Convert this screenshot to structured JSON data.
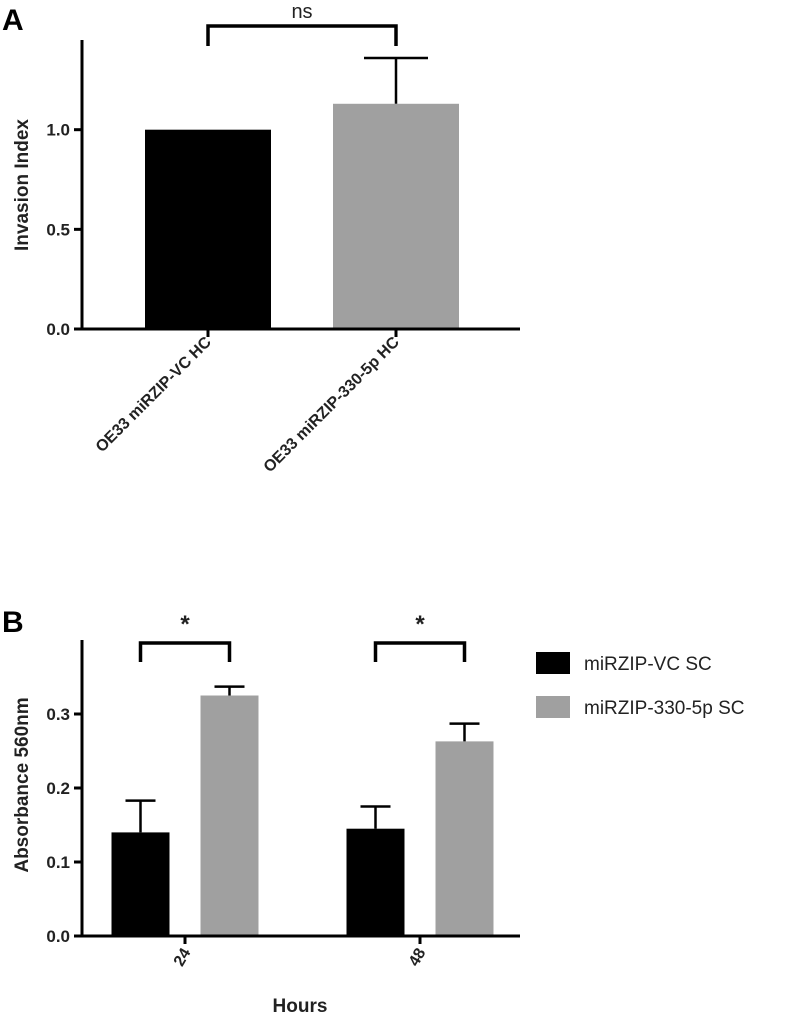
{
  "chart_data": [
    {
      "panel": "A",
      "type": "bar",
      "categories": [
        "OE33 miRZIP-VC HC",
        "OE33 miRZIP-330-5p HC"
      ],
      "values": [
        1.0,
        1.13
      ],
      "errors": [
        0,
        0.23
      ],
      "colors": [
        "#000000",
        "#a0a0a0"
      ],
      "ylabel": "Invasion Index",
      "xlabel": "",
      "ylim": [
        0,
        1.45
      ],
      "yticks": [
        {
          "value": 0.0,
          "label": "0.0"
        },
        {
          "value": 0.5,
          "label": "0.5"
        },
        {
          "value": 1.0,
          "label": "1.0"
        }
      ],
      "significance": [
        {
          "between": [
            0,
            1
          ],
          "label": "ns"
        }
      ],
      "grid": false
    },
    {
      "panel": "B",
      "type": "bar",
      "categories": [
        "24",
        "48"
      ],
      "series": [
        {
          "name": "miRZIP-VC SC",
          "color": "#000000",
          "values": [
            0.14,
            0.145
          ],
          "errors": [
            0.043,
            0.03
          ]
        },
        {
          "name": "miRZIP-330-5p SC",
          "color": "#a0a0a0",
          "values": [
            0.325,
            0.263
          ],
          "errors": [
            0.012,
            0.024
          ]
        }
      ],
      "ylabel": "Absorbance 560nm",
      "xlabel": "Hours",
      "ylim": [
        0,
        0.4
      ],
      "yticks": [
        {
          "value": 0.0,
          "label": "0.0"
        },
        {
          "value": 0.1,
          "label": "0.1"
        },
        {
          "value": 0.2,
          "label": "0.2"
        },
        {
          "value": 0.3,
          "label": "0.3"
        }
      ],
      "significance": [
        {
          "category": 0,
          "label": "*"
        },
        {
          "category": 1,
          "label": "*"
        }
      ],
      "legend": "right",
      "grid": false
    }
  ]
}
